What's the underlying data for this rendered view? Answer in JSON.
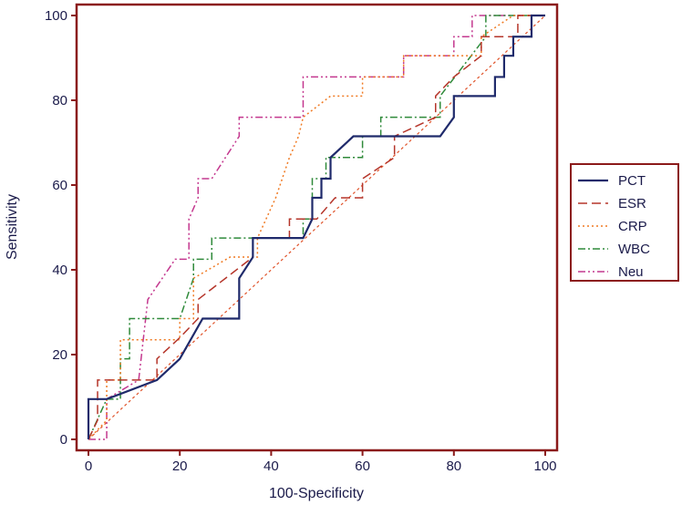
{
  "chart_data": {
    "type": "line",
    "title": "",
    "xlabel": "100-Specificity",
    "ylabel": "Sensitivity",
    "xlim": [
      0,
      100
    ],
    "ylim": [
      0,
      100
    ],
    "xticks": [
      "0",
      "20",
      "40",
      "60",
      "80",
      "100"
    ],
    "yticks": [
      "0",
      "20",
      "40",
      "60",
      "80",
      "100"
    ],
    "grid": false,
    "legend_position": "right",
    "reference_line": {
      "x": [
        0,
        100
      ],
      "y": [
        0,
        100
      ],
      "color": "#e0532a"
    },
    "series": [
      {
        "name": "PCT",
        "color": "#1f2a6b",
        "style": "solid",
        "x": [
          0,
          0,
          4,
          15,
          20,
          25,
          33,
          33,
          36,
          36,
          47,
          49,
          49,
          51,
          51,
          53,
          53,
          58,
          77,
          80,
          80,
          89,
          89,
          91,
          91,
          93,
          93,
          97,
          97,
          100
        ],
        "y": [
          0,
          9.5,
          9.5,
          14,
          19,
          28.5,
          28.5,
          38,
          43,
          47.5,
          47.5,
          52,
          57,
          57,
          61.5,
          61.5,
          66.5,
          71.5,
          71.5,
          76,
          81,
          81,
          85.5,
          85.5,
          90.5,
          90.5,
          95,
          95,
          100,
          100
        ]
      },
      {
        "name": "ESR",
        "color": "#b5352a",
        "style": "dash",
        "x": [
          0,
          2,
          2,
          15,
          15,
          20,
          24,
          24,
          36,
          36,
          44,
          44,
          50,
          54,
          54,
          60,
          60,
          67,
          67,
          76,
          76,
          80,
          80,
          86,
          86,
          94,
          94,
          100
        ],
        "y": [
          0,
          4.5,
          14,
          14,
          19,
          24,
          28.5,
          33,
          43,
          47.5,
          47.5,
          52,
          52,
          57,
          57,
          57,
          61.5,
          66.5,
          71.5,
          76,
          81,
          85.5,
          85.5,
          90.5,
          95,
          95,
          100,
          100
        ]
      },
      {
        "name": "CRP",
        "color": "#f07a23",
        "style": "dot",
        "x": [
          0,
          4,
          4,
          7,
          7,
          14,
          20,
          20,
          23,
          23,
          31,
          37,
          37,
          41,
          41,
          44,
          46,
          47,
          53,
          53,
          60,
          60,
          69,
          69,
          83,
          86,
          86,
          93,
          100
        ],
        "y": [
          0,
          4.5,
          14,
          14,
          23.5,
          23.5,
          23.5,
          28.5,
          28.5,
          38,
          43,
          43,
          47.5,
          57,
          57,
          66.5,
          71.5,
          76,
          81,
          81,
          81,
          85.5,
          85.5,
          90.5,
          90.5,
          90.5,
          95,
          100,
          100
        ]
      },
      {
        "name": "WBC",
        "color": "#2f8a3a",
        "style": "dashdot",
        "x": [
          0,
          4,
          7,
          7,
          9,
          9,
          20,
          23,
          23,
          27,
          27,
          47,
          47,
          49,
          49,
          52,
          52,
          60,
          60,
          64,
          64,
          70,
          70,
          77,
          77,
          87,
          87,
          97,
          100
        ],
        "y": [
          0,
          9.5,
          9.5,
          19,
          19,
          28.5,
          28.5,
          38,
          42.5,
          42.5,
          47.5,
          47.5,
          52,
          52,
          61.5,
          61.5,
          66.5,
          66.5,
          71.5,
          71.5,
          76,
          76,
          76,
          76,
          81,
          95,
          100,
          100,
          100
        ]
      },
      {
        "name": "Neu",
        "color": "#c4388f",
        "style": "dashdotdot",
        "x": [
          0,
          4,
          4,
          11,
          13,
          19,
          22,
          22,
          24,
          24,
          27,
          33,
          33,
          40,
          47,
          47,
          69,
          69,
          80,
          80,
          84,
          84,
          100
        ],
        "y": [
          0,
          0,
          9.5,
          14,
          33,
          42.5,
          42.5,
          52,
          57,
          61.5,
          61.5,
          71.5,
          76,
          76,
          76,
          85.5,
          85.5,
          90.5,
          90.5,
          95,
          95,
          100,
          100
        ]
      }
    ]
  }
}
